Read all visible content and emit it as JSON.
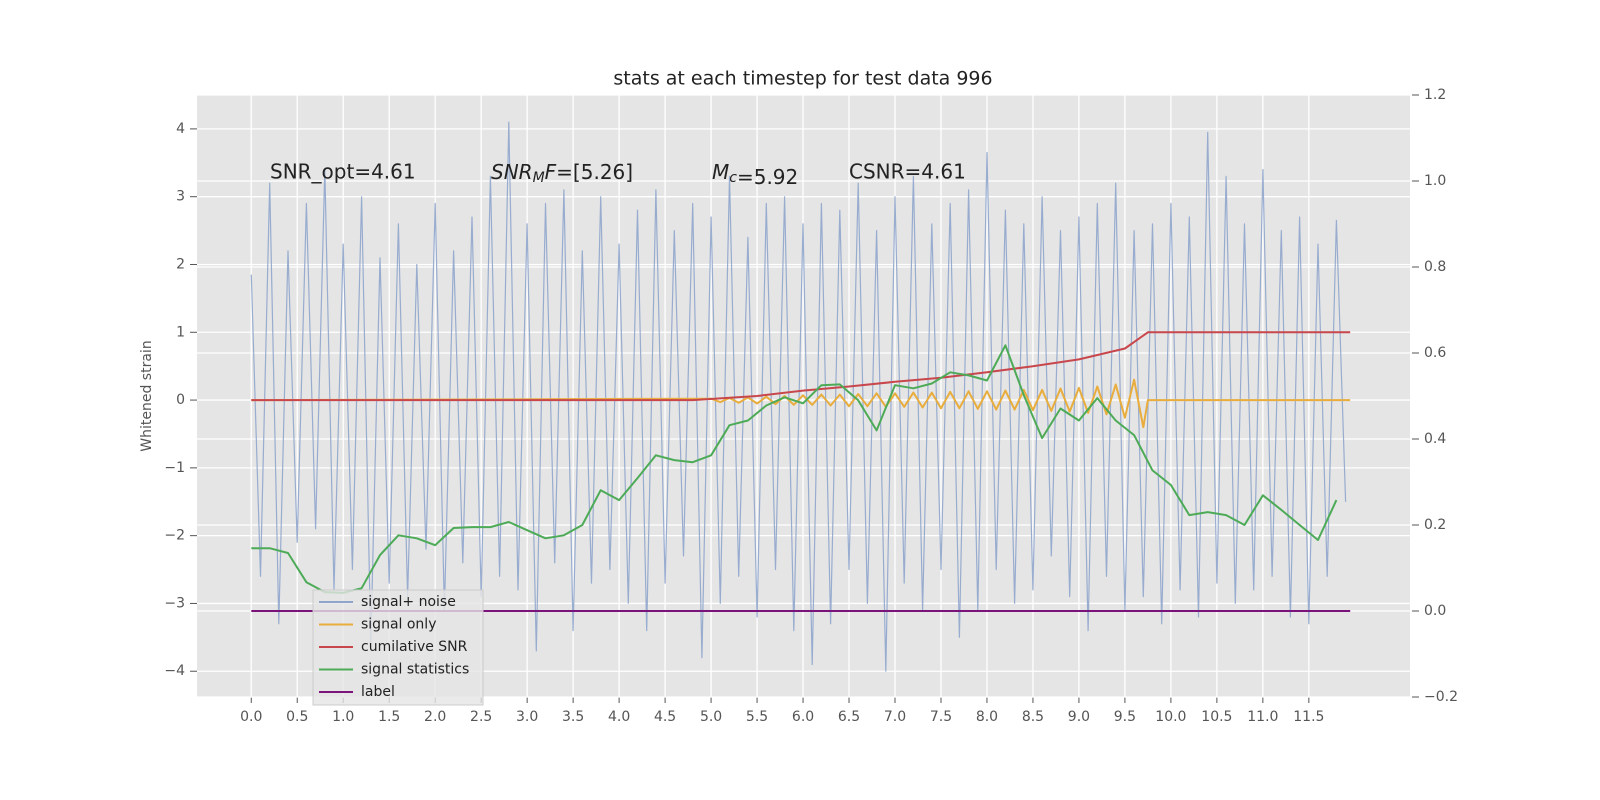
{
  "chart_data": {
    "type": "line",
    "title": "stats at each timestep for test data 996",
    "ylabel": "Whitened strain",
    "annotations": [
      "SNR_opt=4.61",
      {
        "italic": "SNR",
        "sub": "M",
        "italic2": "F",
        "text": "=[5.26]"
      },
      {
        "italic": "M",
        "sub": "c",
        "text": "=5.92"
      },
      "CSNR=4.61"
    ],
    "xlim": [
      -0.59,
      12.6
    ],
    "xticks": [
      {
        "value": 0,
        "label": "0.0"
      },
      0.5,
      {
        "value": 1,
        "label": "1.0"
      },
      1.5,
      {
        "value": 2,
        "label": "2.0"
      },
      2.5,
      {
        "value": 3,
        "label": "3.0"
      },
      3.5,
      {
        "value": 4,
        "label": "4.0"
      },
      4.5,
      {
        "value": 5,
        "label": "5.0"
      },
      5.5,
      {
        "value": 6,
        "label": "6.0"
      },
      6.5,
      {
        "value": 7,
        "label": "7.0"
      },
      7.5,
      {
        "value": 8,
        "label": "8.0"
      },
      8.5,
      {
        "value": 9,
        "label": "9.0"
      },
      9.5,
      {
        "value": 10,
        "label": "10.0"
      },
      10.5,
      {
        "value": 11,
        "label": "11.0"
      },
      11.5
    ],
    "ylim": [
      -4.38,
      4.5
    ],
    "yticks": [
      {
        "value": -4,
        "label": "−4"
      },
      {
        "value": -3,
        "label": "−3"
      },
      {
        "value": -2,
        "label": "−2"
      },
      {
        "value": -1,
        "label": "−1"
      },
      0,
      1,
      2,
      3,
      4
    ],
    "y2lim": [
      -0.2,
      1.2
    ],
    "y2ticks": [
      {
        "value": -0.2,
        "label": "−0.2"
      },
      {
        "value": 0,
        "label": "0.0"
      },
      0.2,
      0.4,
      0.6,
      0.8,
      {
        "value": 1,
        "label": "1.0"
      },
      1.2
    ],
    "grid": true,
    "legend": "lower left",
    "series": [
      {
        "name": "signal+ noise",
        "color": "#8fa5cc",
        "axis": "y",
        "x": [
          0,
          0.1,
          0.2,
          0.3,
          0.4,
          0.5,
          0.6,
          0.7,
          0.8,
          0.9,
          1,
          1.1,
          1.2,
          1.3,
          1.4,
          1.5,
          1.6,
          1.7,
          1.8,
          1.9,
          2,
          2.1,
          2.2,
          2.3,
          2.4,
          2.5,
          2.6,
          2.7,
          2.8,
          2.9,
          3,
          3.1,
          3.2,
          3.3,
          3.4,
          3.5,
          3.6,
          3.7,
          3.8,
          3.9,
          4,
          4.1,
          4.2,
          4.3,
          4.4,
          4.5,
          4.6,
          4.7,
          4.8,
          4.9,
          5,
          5.1,
          5.2,
          5.3,
          5.4,
          5.5,
          5.6,
          5.7,
          5.8,
          5.9,
          6,
          6.1,
          6.2,
          6.3,
          6.4,
          6.5,
          6.6,
          6.7,
          6.8,
          6.9,
          7,
          7.1,
          7.2,
          7.3,
          7.4,
          7.5,
          7.6,
          7.7,
          7.8,
          7.9,
          8,
          8.1,
          8.2,
          8.3,
          8.4,
          8.5,
          8.6,
          8.7,
          8.8,
          8.9,
          9,
          9.1,
          9.2,
          9.3,
          9.4,
          9.5,
          9.6,
          9.7,
          9.8,
          9.9,
          10,
          10.1,
          10.2,
          10.3,
          10.4,
          10.5,
          10.6,
          10.7,
          10.8,
          10.9,
          11,
          11.1,
          11.2,
          11.3,
          11.4,
          11.5,
          11.6,
          11.7,
          11.8,
          11.9
        ],
        "values": [
          1.85,
          -2.6,
          3.2,
          -3.3,
          2.2,
          -2.1,
          2.9,
          -1.9,
          3.4,
          -2.8,
          2.3,
          -2.5,
          3.0,
          -3.6,
          2.1,
          -2.7,
          2.6,
          -2.9,
          2.0,
          -2.2,
          2.9,
          -3.1,
          2.2,
          -2.4,
          2.7,
          -2.9,
          3.3,
          -2.6,
          4.1,
          -2.8,
          2.6,
          -3.7,
          2.9,
          -2.4,
          3.1,
          -3.4,
          2.2,
          -2.7,
          3.0,
          -2.5,
          2.3,
          -3.0,
          2.8,
          -3.4,
          3.1,
          -2.7,
          2.5,
          -2.3,
          2.9,
          -3.8,
          2.7,
          -3.0,
          3.3,
          -2.6,
          2.4,
          -3.2,
          2.9,
          -2.5,
          3.0,
          -3.4,
          2.6,
          -3.9,
          2.9,
          -3.3,
          2.8,
          -2.5,
          3.2,
          -3.0,
          2.5,
          -4.0,
          3.0,
          -2.7,
          3.3,
          -3.1,
          2.6,
          -2.5,
          2.9,
          -3.5,
          3.1,
          -3.1,
          3.65,
          -2.5,
          2.8,
          -3.0,
          2.6,
          -2.8,
          3.0,
          -2.3,
          2.5,
          -2.9,
          2.7,
          -3.4,
          2.9,
          -2.6,
          3.2,
          -3.1,
          2.5,
          -2.9,
          2.6,
          -3.3,
          2.9,
          -2.8,
          2.7,
          -3.2,
          3.95,
          -2.7,
          3.3,
          -3.0,
          2.6,
          -2.8,
          3.4,
          -2.6,
          2.5,
          -3.2,
          2.7,
          -3.3,
          2.3,
          -2.6,
          2.65,
          -1.5
        ]
      },
      {
        "name": "signal only",
        "color": "#e8ad3c",
        "axis": "y",
        "x": [
          0,
          5.0,
          5.1,
          5.2,
          5.3,
          5.4,
          5.5,
          5.6,
          5.7,
          5.8,
          5.9,
          6.0,
          6.1,
          6.2,
          6.3,
          6.4,
          6.5,
          6.6,
          6.7,
          6.8,
          6.9,
          7.0,
          7.1,
          7.2,
          7.3,
          7.4,
          7.5,
          7.6,
          7.7,
          7.8,
          7.9,
          8.0,
          8.1,
          8.2,
          8.3,
          8.4,
          8.5,
          8.6,
          8.7,
          8.8,
          8.9,
          9.0,
          9.1,
          9.2,
          9.3,
          9.4,
          9.5,
          9.6,
          9.7,
          9.75,
          11.95
        ],
        "values": [
          0,
          0.02,
          -0.03,
          0.03,
          -0.04,
          0.04,
          -0.05,
          0.05,
          -0.06,
          0.06,
          -0.07,
          0.07,
          -0.07,
          0.08,
          -0.08,
          0.08,
          -0.09,
          0.09,
          -0.09,
          0.1,
          -0.1,
          0.1,
          -0.1,
          0.11,
          -0.11,
          0.11,
          -0.12,
          0.12,
          -0.12,
          0.13,
          -0.13,
          0.13,
          -0.14,
          0.14,
          -0.14,
          0.15,
          -0.15,
          0.15,
          -0.16,
          0.17,
          -0.17,
          0.18,
          -0.19,
          0.2,
          -0.21,
          0.23,
          -0.26,
          0.3,
          -0.4,
          0,
          0
        ]
      },
      {
        "name": "cumilative SNR",
        "color": "#c8474c",
        "axis": "y",
        "x": [
          0,
          4.8,
          5.5,
          6,
          6.5,
          7,
          7.5,
          8,
          8.5,
          9,
          9.5,
          9.75,
          11.95
        ],
        "values": [
          0,
          0,
          0.06,
          0.14,
          0.2,
          0.27,
          0.33,
          0.41,
          0.5,
          0.6,
          0.76,
          1,
          1
        ]
      },
      {
        "name": "signal statistics",
        "color": "#4dab57",
        "axis": "y2",
        "x": [
          0,
          0.2,
          0.4,
          0.6,
          0.8,
          1,
          1.2,
          1.4,
          1.6,
          1.8,
          2,
          2.2,
          2.4,
          2.6,
          2.8,
          3,
          3.2,
          3.4,
          3.6,
          3.8,
          4,
          4.2,
          4.4,
          4.6,
          4.8,
          5,
          5.2,
          5.4,
          5.6,
          5.8,
          6,
          6.2,
          6.4,
          6.6,
          6.8,
          7,
          7.2,
          7.4,
          7.6,
          7.8,
          8,
          8.2,
          8.4,
          8.6,
          8.8,
          9,
          9.2,
          9.4,
          9.6,
          9.8,
          10,
          10.2,
          10.4,
          10.6,
          10.8,
          11,
          11.2,
          11.4,
          11.6,
          11.8
        ],
        "values": [
          0.146,
          0.146,
          0.135,
          0.067,
          0.044,
          0.042,
          0.053,
          0.13,
          0.176,
          0.169,
          0.153,
          0.193,
          0.195,
          0.195,
          0.207,
          0.188,
          0.169,
          0.176,
          0.2,
          0.281,
          0.258,
          0.309,
          0.362,
          0.351,
          0.346,
          0.362,
          0.432,
          0.443,
          0.478,
          0.497,
          0.483,
          0.525,
          0.527,
          0.49,
          0.42,
          0.525,
          0.518,
          0.529,
          0.555,
          0.548,
          0.536,
          0.618,
          0.502,
          0.402,
          0.471,
          0.443,
          0.495,
          0.443,
          0.409,
          0.327,
          0.293,
          0.223,
          0.23,
          0.223,
          0.2,
          0.269,
          0.235,
          0.2,
          0.165,
          0.258
        ]
      },
      {
        "name": "label",
        "color": "#7a137a",
        "axis": "y2",
        "x": [
          0,
          11.95
        ],
        "values": [
          0,
          0
        ]
      }
    ]
  }
}
